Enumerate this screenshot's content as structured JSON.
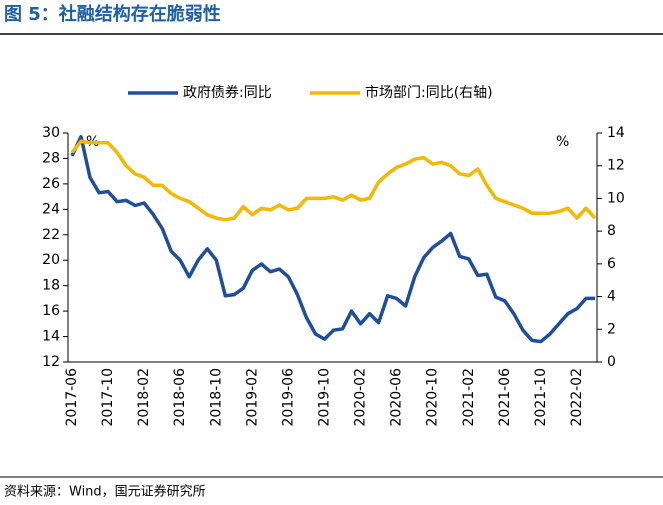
{
  "chart_data": {
    "type": "line",
    "title": "图 5：社融结构存在脆弱性",
    "source": "资料来源：Wind，国元证券研究所",
    "y_label": "%",
    "y2_label": "%",
    "categories": [
      "2017-06",
      null,
      null,
      null,
      "2017-10",
      null,
      null,
      null,
      "2018-02",
      null,
      null,
      null,
      "2018-06",
      null,
      null,
      null,
      "2018-10",
      null,
      null,
      null,
      "2019-02",
      null,
      null,
      null,
      "2019-06",
      null,
      null,
      null,
      "2019-10",
      null,
      null,
      null,
      "2020-02",
      null,
      null,
      null,
      "2020-06",
      null,
      null,
      null,
      "2020-10",
      null,
      null,
      null,
      "2021-02",
      null,
      null,
      null,
      "2021-06",
      null,
      null,
      null,
      "2021-10",
      null,
      null,
      null,
      "2022-02",
      null,
      null
    ],
    "series": [
      {
        "name": "政府债券:同比",
        "color": "#1f4e9c",
        "axis": "y",
        "values": [
          28.2,
          29.7,
          26.5,
          25.3,
          25.4,
          24.6,
          24.7,
          24.3,
          24.5,
          23.6,
          22.5,
          20.7,
          20.0,
          18.7,
          20.0,
          20.9,
          20.0,
          17.2,
          17.3,
          17.8,
          19.2,
          19.7,
          19.1,
          19.3,
          18.7,
          17.3,
          15.5,
          14.2,
          13.8,
          14.5,
          14.6,
          16.0,
          15.0,
          15.8,
          15.1,
          17.2,
          17.0,
          16.4,
          18.7,
          20.2,
          21.0,
          21.5,
          22.1,
          20.3,
          20.1,
          18.8,
          18.9,
          17.1,
          16.8,
          15.8,
          14.5,
          13.7,
          13.6,
          14.2,
          15.0,
          15.8,
          16.2,
          17.0,
          17.0
        ]
      },
      {
        "name": "市场部门:同比(右轴)",
        "color": "#f5b800",
        "axis": "y2",
        "values": [
          12.8,
          13.5,
          13.4,
          13.4,
          13.4,
          12.8,
          12.0,
          11.5,
          11.3,
          10.8,
          10.8,
          10.3,
          10.0,
          9.8,
          9.4,
          9.0,
          8.8,
          8.7,
          8.8,
          9.5,
          9.0,
          9.4,
          9.3,
          9.6,
          9.3,
          9.4,
          10.0,
          10.0,
          10.0,
          10.1,
          9.9,
          10.2,
          9.9,
          10.0,
          11.0,
          11.5,
          11.9,
          12.1,
          12.4,
          12.5,
          12.1,
          12.2,
          12.0,
          11.5,
          11.4,
          11.8,
          10.8,
          10.0,
          9.8,
          9.6,
          9.4,
          9.1,
          9.1,
          9.1,
          9.2,
          9.4,
          8.8,
          9.4,
          8.8
        ]
      }
    ],
    "ylim": [
      12,
      30
    ],
    "yticks": [
      12,
      14,
      16,
      18,
      20,
      22,
      24,
      26,
      28,
      30
    ],
    "y2lim": [
      0,
      14
    ],
    "y2ticks": [
      0,
      2,
      4,
      6,
      8,
      10,
      12,
      14
    ]
  }
}
